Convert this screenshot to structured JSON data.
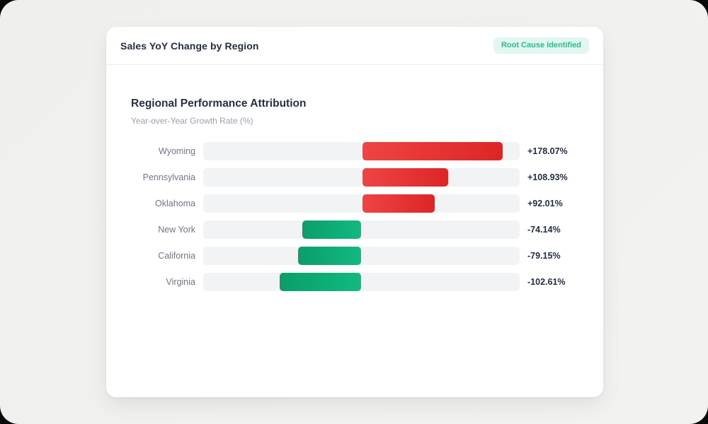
{
  "header": {
    "title": "Sales YoY Change by Region",
    "badge": "Root Cause Identified"
  },
  "colors": {
    "badge_bg": "#e2f8ee",
    "badge_text": "#23c08a",
    "positive_gradient_start": "#ef4444",
    "positive_gradient_end": "#dc2626",
    "negative_gradient_start": "#0a9e6a",
    "negative_gradient_end": "#12b980",
    "track": "#f2f3f5"
  },
  "chart_data": {
    "type": "bar",
    "orientation": "horizontal",
    "title": "Regional Performance Attribution",
    "subtitle": "Year-over-Year Growth Rate (%)",
    "categories": [
      "Wyoming",
      "Pennsylvania",
      "Oklahoma",
      "New York",
      "California",
      "Virginia"
    ],
    "values": [
      178.07,
      108.93,
      92.01,
      -74.14,
      -79.15,
      -102.61
    ],
    "value_labels": [
      "+178.07%",
      "+108.93%",
      "+92.01%",
      "-74.14%",
      "-79.15%",
      "-102.61%"
    ],
    "xlim": [
      -200,
      200
    ],
    "zero_baseline": true,
    "legend": "none",
    "grid": false
  }
}
